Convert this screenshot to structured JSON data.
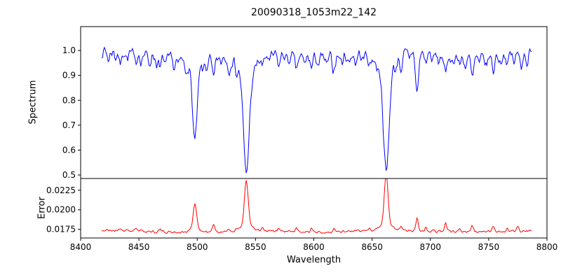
{
  "background": "#ffffff",
  "chart_data": {
    "type": "line",
    "title": "20090318_1053m22_142",
    "xlabel": "Wavelength",
    "x_range": [
      8400,
      8800
    ],
    "x_ticks": [
      8400,
      8450,
      8500,
      8550,
      8600,
      8650,
      8700,
      8750,
      8800
    ],
    "grid": false,
    "legend": false,
    "features_format": [
      "center_wavelength",
      "amplitude",
      "sigma"
    ],
    "subplots": [
      {
        "name": "spectrum",
        "ylabel": "Spectrum",
        "color": "#0000ff",
        "ylim": [
          0.486,
          1.096
        ],
        "y_ticks": [
          0.5,
          0.6,
          0.7,
          0.8,
          0.9,
          1.0
        ],
        "y_tick_labels": [
          "0.5",
          "0.6",
          "0.7",
          "0.8",
          "0.9",
          "1.0"
        ],
        "continuum": 0.982,
        "noise_amplitude": 0.026,
        "noise_seed": 7,
        "x_start": 8418,
        "x_end": 8787,
        "x_step": 0.8,
        "features": [
          [
            8498.0,
            -0.28,
            1.9
          ],
          [
            8498.0,
            -0.05,
            5.0
          ],
          [
            8542.1,
            -0.41,
            2.4
          ],
          [
            8542.1,
            -0.07,
            8.0
          ],
          [
            8662.1,
            -0.42,
            2.4
          ],
          [
            8662.1,
            -0.07,
            8.0
          ],
          [
            8688.6,
            -0.165,
            1.3
          ],
          [
            8424,
            -0.035,
            1.0
          ],
          [
            8430,
            -0.025,
            0.9
          ],
          [
            8434,
            -0.055,
            1.0
          ],
          [
            8440,
            -0.03,
            0.9
          ],
          [
            8447,
            -0.045,
            1.0
          ],
          [
            8452,
            -0.03,
            0.9
          ],
          [
            8459,
            -0.035,
            1.0
          ],
          [
            8465,
            -0.03,
            0.9
          ],
          [
            8468,
            -0.055,
            1.0
          ],
          [
            8473,
            -0.03,
            0.9
          ],
          [
            8480,
            -0.04,
            1.0
          ],
          [
            8484,
            -0.025,
            0.9
          ],
          [
            8490,
            -0.04,
            1.0
          ],
          [
            8505,
            -0.03,
            0.9
          ],
          [
            8508,
            -0.035,
            0.9
          ],
          [
            8514,
            -0.085,
            1.2
          ],
          [
            8520,
            -0.03,
            0.9
          ],
          [
            8527,
            -0.05,
            1.1
          ],
          [
            8534,
            -0.035,
            0.9
          ],
          [
            8548,
            -0.03,
            0.9
          ],
          [
            8556,
            -0.035,
            1.0
          ],
          [
            8562,
            -0.03,
            0.9
          ],
          [
            8570,
            -0.045,
            1.0
          ],
          [
            8578,
            -0.03,
            0.9
          ],
          [
            8585,
            -0.055,
            1.1
          ],
          [
            8592,
            -0.03,
            0.9
          ],
          [
            8598,
            -0.045,
            1.0
          ],
          [
            8604,
            -0.03,
            0.9
          ],
          [
            8611,
            -0.035,
            1.0
          ],
          [
            8617,
            -0.055,
            1.1
          ],
          [
            8624,
            -0.03,
            0.9
          ],
          [
            8630,
            -0.035,
            1.0
          ],
          [
            8636,
            -0.04,
            1.0
          ],
          [
            8642,
            -0.03,
            0.9
          ],
          [
            8648,
            -0.045,
            1.0
          ],
          [
            8654,
            -0.03,
            0.9
          ],
          [
            8670,
            -0.035,
            1.0
          ],
          [
            8675,
            -0.055,
            1.1
          ],
          [
            8682,
            -0.035,
            0.9
          ],
          [
            8696,
            -0.04,
            1.0
          ],
          [
            8702,
            -0.03,
            0.9
          ],
          [
            8707,
            -0.035,
            1.0
          ],
          [
            8713,
            -0.08,
            1.2
          ],
          [
            8719,
            -0.03,
            0.9
          ],
          [
            8725,
            -0.035,
            1.0
          ],
          [
            8730,
            -0.04,
            1.0
          ],
          [
            8736,
            -0.085,
            1.2
          ],
          [
            8742,
            -0.035,
            0.9
          ],
          [
            8748,
            -0.04,
            1.0
          ],
          [
            8754,
            -0.06,
            1.1
          ],
          [
            8760,
            -0.035,
            0.9
          ],
          [
            8766,
            -0.04,
            1.0
          ],
          [
            8772,
            -0.035,
            0.9
          ],
          [
            8778,
            -0.045,
            1.0
          ],
          [
            8783,
            -0.035,
            0.9
          ]
        ]
      },
      {
        "name": "error",
        "ylabel": "Error",
        "color": "#ff0000",
        "ylim": [
          0.0164,
          0.024
        ],
        "y_ticks": [
          0.0175,
          0.02,
          0.0225
        ],
        "y_tick_labels": [
          "0.0175",
          "0.0200",
          "0.0225"
        ],
        "continuum": 0.01725,
        "noise_amplitude": 0.0002,
        "noise_seed": 21,
        "x_start": 8418,
        "x_end": 8787,
        "x_step": 0.8,
        "features": [
          [
            8498.0,
            0.0033,
            1.5
          ],
          [
            8498.0,
            0.0004,
            4.0
          ],
          [
            8542.1,
            0.0057,
            1.6
          ],
          [
            8542.1,
            0.0008,
            5.0
          ],
          [
            8662.1,
            0.0062,
            1.6
          ],
          [
            8662.1,
            0.0009,
            5.0
          ],
          [
            8688.6,
            0.0016,
            1.0
          ],
          [
            8434,
            0.0003,
            1.0
          ],
          [
            8447,
            0.0003,
            1.0
          ],
          [
            8468,
            0.0003,
            1.0
          ],
          [
            8514,
            0.0009,
            1.0
          ],
          [
            8527,
            0.0004,
            0.9
          ],
          [
            8556,
            0.0004,
            0.9
          ],
          [
            8570,
            0.0004,
            0.9
          ],
          [
            8585,
            0.0004,
            0.9
          ],
          [
            8598,
            0.0004,
            0.9
          ],
          [
            8617,
            0.0004,
            0.9
          ],
          [
            8648,
            0.0004,
            0.9
          ],
          [
            8675,
            0.0005,
            0.9
          ],
          [
            8696,
            0.0004,
            0.9
          ],
          [
            8713,
            0.0011,
            1.0
          ],
          [
            8725,
            0.0004,
            0.9
          ],
          [
            8736,
            0.0008,
            1.0
          ],
          [
            8754,
            0.0006,
            1.0
          ],
          [
            8766,
            0.0004,
            0.9
          ],
          [
            8775,
            0.0005,
            1.0
          ]
        ]
      }
    ]
  }
}
